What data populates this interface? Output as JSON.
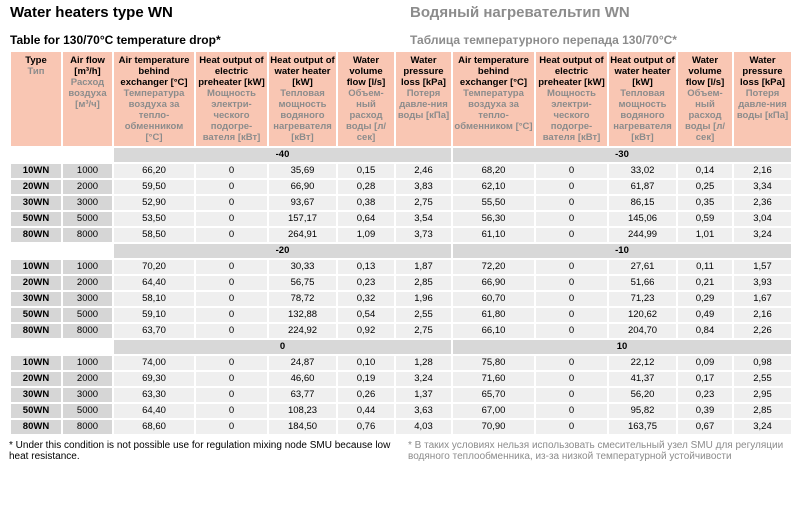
{
  "title_en": "Water heaters type WN",
  "title_ru": "Водяный нагревательтип WN",
  "subtitle_en": "Table for 130/70°C temperature drop*",
  "subtitle_ru": "Таблица температурного перепада 130/70°C*",
  "columns": [
    {
      "en": "Type",
      "ru": "Тип"
    },
    {
      "en": "Air flow [m³/h]",
      "ru": "Расход воздуха [м³/ч]"
    },
    {
      "en": "Air temperature behind exchanger [°C]",
      "ru": "Температура воздуха за тепло-обменником [°C]"
    },
    {
      "en": "Heat output of electric preheater [kW]",
      "ru": "Мощность электри-ческого подогре-вателя [кВт]"
    },
    {
      "en": "Heat output of water heater [kW]",
      "ru": "Тепловая мощность водяного нагревателя [кВт]"
    },
    {
      "en": "Water volume flow [l/s]",
      "ru": "Объем-ный расход воды [л/сек]"
    },
    {
      "en": "Water pressure loss [kPa]",
      "ru": "Потеря давле-ния воды [кПа]"
    },
    {
      "en": "Air temperature behind exchanger [°C]",
      "ru": "Температура воздуха за тепло-обменником [°C]"
    },
    {
      "en": "Heat output of electric preheater [kW]",
      "ru": "Мощность электри-ческого подогре-вателя [кВт]"
    },
    {
      "en": "Heat output of water heater [kW]",
      "ru": "Тепловая мощность водяного нагревателя [кВт]"
    },
    {
      "en": "Water volume flow [l/s]",
      "ru": "Объем-ный расход воды [л/сек]"
    },
    {
      "en": "Water pressure loss [kPa]",
      "ru": "Потеря давле-ния воды [кПа]"
    }
  ],
  "blocks": [
    {
      "left": "-40",
      "right": "-30",
      "rows": [
        [
          "10WN",
          "1000",
          "66,20",
          "0",
          "35,69",
          "0,15",
          "2,46",
          "68,20",
          "0",
          "33,02",
          "0,14",
          "2,16"
        ],
        [
          "20WN",
          "2000",
          "59,50",
          "0",
          "66,90",
          "0,28",
          "3,83",
          "62,10",
          "0",
          "61,87",
          "0,25",
          "3,34"
        ],
        [
          "30WN",
          "3000",
          "52,90",
          "0",
          "93,67",
          "0,38",
          "2,75",
          "55,50",
          "0",
          "86,15",
          "0,35",
          "2,36"
        ],
        [
          "50WN",
          "5000",
          "53,50",
          "0",
          "157,17",
          "0,64",
          "3,54",
          "56,30",
          "0",
          "145,06",
          "0,59",
          "3,04"
        ],
        [
          "80WN",
          "8000",
          "58,50",
          "0",
          "264,91",
          "1,09",
          "3,73",
          "61,10",
          "0",
          "244,99",
          "1,01",
          "3,24"
        ]
      ]
    },
    {
      "left": "-20",
      "right": "-10",
      "rows": [
        [
          "10WN",
          "1000",
          "70,20",
          "0",
          "30,33",
          "0,13",
          "1,87",
          "72,20",
          "0",
          "27,61",
          "0,11",
          "1,57"
        ],
        [
          "20WN",
          "2000",
          "64,40",
          "0",
          "56,75",
          "0,23",
          "2,85",
          "66,90",
          "0",
          "51,66",
          "0,21",
          "3,93"
        ],
        [
          "30WN",
          "3000",
          "58,10",
          "0",
          "78,72",
          "0,32",
          "1,96",
          "60,70",
          "0",
          "71,23",
          "0,29",
          "1,67"
        ],
        [
          "50WN",
          "5000",
          "59,10",
          "0",
          "132,88",
          "0,54",
          "2,55",
          "61,80",
          "0",
          "120,62",
          "0,49",
          "2,16"
        ],
        [
          "80WN",
          "8000",
          "63,70",
          "0",
          "224,92",
          "0,92",
          "2,75",
          "66,10",
          "0",
          "204,70",
          "0,84",
          "2,26"
        ]
      ]
    },
    {
      "left": "0",
      "right": "10",
      "rows": [
        [
          "10WN",
          "1000",
          "74,00",
          "0",
          "24,87",
          "0,10",
          "1,28",
          "75,80",
          "0",
          "22,12",
          "0,09",
          "0,98"
        ],
        [
          "20WN",
          "2000",
          "69,30",
          "0",
          "46,60",
          "0,19",
          "3,24",
          "71,60",
          "0",
          "41,37",
          "0,17",
          "2,55"
        ],
        [
          "30WN",
          "3000",
          "63,30",
          "0",
          "63,77",
          "0,26",
          "1,37",
          "65,70",
          "0",
          "56,20",
          "0,23",
          "2,95"
        ],
        [
          "50WN",
          "5000",
          "64,40",
          "0",
          "108,23",
          "0,44",
          "3,63",
          "67,00",
          "0",
          "95,82",
          "0,39",
          "2,85"
        ],
        [
          "80WN",
          "8000",
          "68,60",
          "0",
          "184,50",
          "0,76",
          "4,03",
          "70,90",
          "0",
          "163,75",
          "0,67",
          "3,24"
        ]
      ]
    }
  ],
  "note_en": "* Under this condition is not possible use for regulation mixing node SMU because low heat resistance.",
  "note_ru": "* В таких условиях нельзя использовать смесительный узел SMU для регуляции водяного теплообменника, из-за низкой температурной устойчивости",
  "colors": {
    "header_bg": "#f9c6b3",
    "type_bg": "#d6d6d6",
    "cell_bg": "#efefef",
    "ru_text": "#8c8c8c"
  }
}
